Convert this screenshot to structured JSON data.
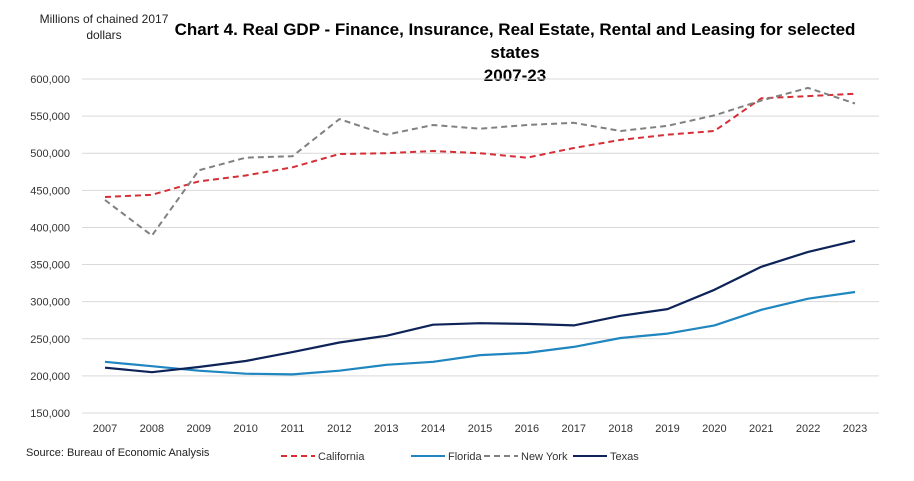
{
  "chart_data": {
    "type": "line",
    "title": "Chart 4. Real GDP - Finance, Insurance, Real Estate, Rental and Leasing  for selected states 2007-23",
    "title_line1": "Chart 4. Real GDP - Finance, Insurance, Real Estate, Rental and Leasing  for selected states",
    "title_line2": "2007-23",
    "ylabel_line1": "Millions of chained 2017",
    "ylabel_line2": "dollars",
    "xlabel": "",
    "source": "Source: Bureau of Economic Analysis",
    "ylim": [
      150000,
      600000
    ],
    "yticks": [
      "150,000",
      "200,000",
      "250,000",
      "300,000",
      "350,000",
      "400,000",
      "450,000",
      "500,000",
      "550,000",
      "600,000"
    ],
    "ytick_values": [
      150000,
      200000,
      250000,
      300000,
      350000,
      400000,
      450000,
      500000,
      550000,
      600000
    ],
    "x": [
      "2007",
      "2008",
      "2009",
      "2010",
      "2011",
      "2012",
      "2013",
      "2014",
      "2015",
      "2016",
      "2017",
      "2018",
      "2019",
      "2020",
      "2021",
      "2022",
      "2023"
    ],
    "series": [
      {
        "name": "California",
        "color": "#d62e36",
        "dash": true,
        "values": [
          441000,
          444000,
          462000,
          470000,
          481000,
          499000,
          500000,
          503000,
          500000,
          494000,
          507000,
          518000,
          525000,
          530000,
          574000,
          577000,
          580000
        ]
      },
      {
        "name": "Florida",
        "color": "#1f86bf",
        "dash": false,
        "values": [
          219000,
          213000,
          207000,
          203000,
          202000,
          207000,
          215000,
          219000,
          228000,
          231000,
          239000,
          251000,
          257000,
          268000,
          289000,
          304000,
          313000
        ]
      },
      {
        "name": "New York",
        "color": "#808080",
        "dash": true,
        "values": [
          437000,
          389000,
          477000,
          494000,
          496000,
          546000,
          525000,
          538000,
          533000,
          538000,
          541000,
          530000,
          537000,
          551000,
          571000,
          588000,
          567000
        ]
      },
      {
        "name": "Texas",
        "color": "#0e2358",
        "dash": false,
        "values": [
          211000,
          205000,
          212000,
          220000,
          232000,
          245000,
          254000,
          269000,
          271000,
          270000,
          268000,
          281000,
          290000,
          316000,
          347000,
          367000,
          382000
        ]
      }
    ],
    "legend_position": "bottom",
    "grid": true
  }
}
